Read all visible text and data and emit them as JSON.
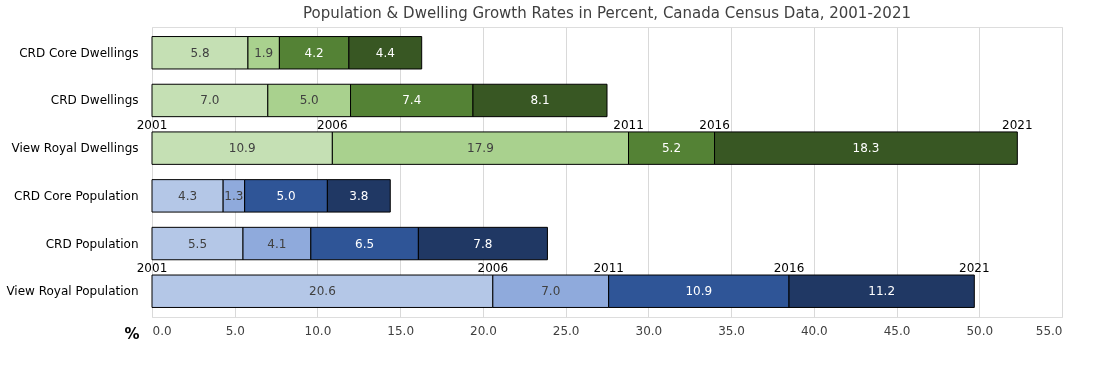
{
  "chart_data": {
    "type": "bar",
    "orientation": "horizontal",
    "stacked": true,
    "title": "Population & Dwelling Growth Rates in Percent, Canada Census Data, 2001-2021",
    "xlabel": "%",
    "categories": [
      "CRD Core Dwellings",
      "CRD Dwellings",
      "View Royal Dwellings",
      "CRD Core Population",
      "CRD Population",
      "View Royal Population"
    ],
    "series": [
      {
        "values": [
          5.8,
          7.0,
          10.9,
          4.3,
          5.5,
          20.6
        ],
        "value_labels": [
          "5.8",
          "7.0",
          "10.9",
          "4.3",
          "5.5",
          "20.6"
        ],
        "colors": [
          "#c5e0b4",
          "#c5e0b4",
          "#c5e0b4",
          "#b4c7e7",
          "#b4c7e7",
          "#b4c7e7"
        ]
      },
      {
        "values": [
          1.9,
          5.0,
          17.9,
          1.3,
          4.1,
          7.0
        ],
        "value_labels": [
          "1.9",
          "5.0",
          "17.9",
          "1.3",
          "4.1",
          "7.0"
        ],
        "colors": [
          "#a9d18e",
          "#a9d18e",
          "#a9d18e",
          "#8faadc",
          "#8faadc",
          "#8faadc"
        ]
      },
      {
        "values": [
          4.2,
          7.4,
          5.2,
          5.0,
          6.5,
          10.9
        ],
        "value_labels": [
          "4.2",
          "7.4",
          "5.2",
          "5.0",
          "6.5",
          "10.9"
        ],
        "colors": [
          "#548235",
          "#548235",
          "#548235",
          "#2f5597",
          "#2f5597",
          "#2f5597"
        ]
      },
      {
        "values": [
          4.4,
          8.1,
          18.3,
          3.8,
          7.8,
          11.2
        ],
        "value_labels": [
          "4.4",
          "8.1",
          "18.3",
          "3.8",
          "7.8",
          "11.2"
        ],
        "colors": [
          "#385723",
          "#385723",
          "#385723",
          "#203864",
          "#203864",
          "#203864"
        ]
      }
    ],
    "xlim": [
      0,
      55
    ],
    "xticks": [
      {
        "value": 0,
        "label": "0.0"
      },
      {
        "value": 5,
        "label": "5.0"
      },
      {
        "value": 10,
        "label": "10.0"
      },
      {
        "value": 15,
        "label": "15.0"
      },
      {
        "value": 20,
        "label": "20.0"
      },
      {
        "value": 25,
        "label": "25.0"
      },
      {
        "value": 30,
        "label": "30.0"
      },
      {
        "value": 35,
        "label": "35.0"
      },
      {
        "value": 40,
        "label": "40.0"
      },
      {
        "value": 45,
        "label": "45.0"
      },
      {
        "value": 50,
        "label": "50.0"
      },
      {
        "value": 55,
        "label": "55.0"
      }
    ],
    "grid": "x",
    "annotations": [
      {
        "text": "2001",
        "x": 0,
        "y": "View Royal Dwellings"
      },
      {
        "text": "2006",
        "x": 10.9,
        "y": "View Royal Dwellings"
      },
      {
        "text": "2011",
        "x": 28.8,
        "y": "View Royal Dwellings"
      },
      {
        "text": "2016",
        "x": 34.0,
        "y": "View Royal Dwellings"
      },
      {
        "text": "2021",
        "x": 52.3,
        "y": "View Royal Dwellings"
      },
      {
        "text": "2001",
        "x": 0,
        "y": "View Royal Population"
      },
      {
        "text": "2006",
        "x": 20.6,
        "y": "View Royal Population"
      },
      {
        "text": "2011",
        "x": 27.6,
        "y": "View Royal Population"
      },
      {
        "text": "2016",
        "x": 38.5,
        "y": "View Royal Population"
      },
      {
        "text": "2021",
        "x": 49.7,
        "y": "View Royal Population"
      }
    ]
  }
}
